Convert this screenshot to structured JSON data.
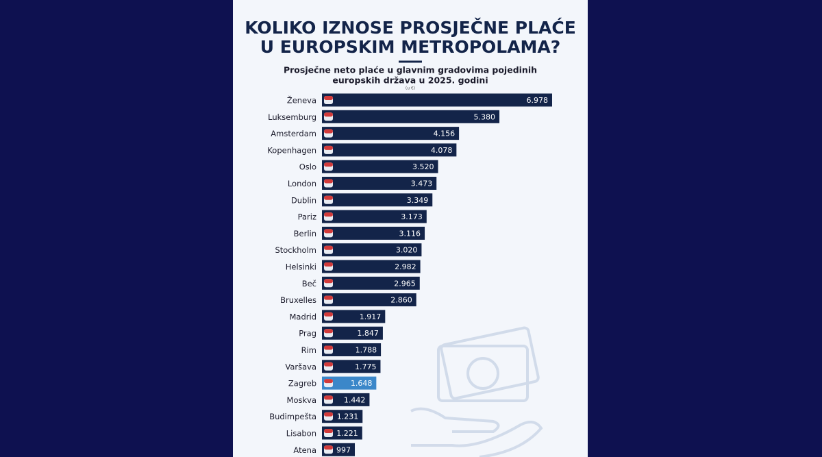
{
  "chart_data": {
    "type": "bar",
    "title": [
      "KOLIKO IZNOSE PROSJEČNE PLAĆE",
      "U EUROPSKIM METROPOLAMA?"
    ],
    "subtitle": [
      "Prosječne neto plaće u glavnim gradovima pojedinih",
      "europskih država u 2025. godini"
    ],
    "unit": "(u €)",
    "categories": [
      "Ženeva",
      "Luksemburg",
      "Amsterdam",
      "Kopenhagen",
      "Oslo",
      "London",
      "Dublin",
      "Pariz",
      "Berlin",
      "Stockholm",
      "Helsinki",
      "Beč",
      "Bruxelles",
      "Madrid",
      "Prag",
      "Rim",
      "Varšava",
      "Zagreb",
      "Moskva",
      "Budimpešta",
      "Lisabon",
      "Atena"
    ],
    "values": [
      6978,
      5380,
      4156,
      4078,
      3520,
      3473,
      3349,
      3173,
      3116,
      3020,
      2982,
      2965,
      2860,
      1917,
      1847,
      1788,
      1775,
      1648,
      1442,
      1231,
      1221,
      997
    ],
    "value_labels": [
      "6.978",
      "5.380",
      "4.156",
      "4.078",
      "3.520",
      "3.473",
      "3.349",
      "3.173",
      "3.116",
      "3.020",
      "2.982",
      "2.965",
      "2.860",
      "1.917",
      "1.847",
      "1.788",
      "1.775",
      "1.648",
      "1.442",
      "1.231",
      "1.221",
      "997"
    ],
    "colors": [
      "#132449",
      "#132449",
      "#132449",
      "#132449",
      "#132449",
      "#132449",
      "#132449",
      "#132449",
      "#132449",
      "#132449",
      "#132449",
      "#132449",
      "#132449",
      "#132449",
      "#132449",
      "#132449",
      "#132449",
      "#3b87c9",
      "#132449",
      "#132449",
      "#132449",
      "#132449"
    ]
  }
}
